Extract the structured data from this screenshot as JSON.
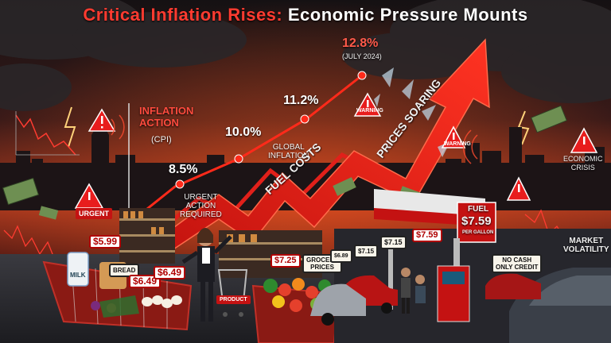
{
  "title": {
    "red_part": "Critical Inflation Rises:",
    "white_part": "Economic Pressure Mounts"
  },
  "chart_labels": {
    "peak_value": "12.8%",
    "peak_date": "(JULY 2024)",
    "value_11": "11.2%",
    "value_10": "10.0%",
    "value_8": "8.5%",
    "inflation_action": "INFLATION\nACTION",
    "cpi": "(CPI)",
    "urgent_action": "URGENT\nACTION\nREQUIRED",
    "global_inflation": "GLOBAL\nINFLATION",
    "fuel_costs": "FUEL COSTS",
    "prices_soaring": "PRICES SOARING"
  },
  "signs": {
    "urgent": "URGENT",
    "warning_1": "WARNING",
    "warning_2": "WARNING",
    "economic_crisis": "ECONOMIC\nCRISIS",
    "market_volatility": "MARKET\nVOLATILITY"
  },
  "price_tags": {
    "p599": "$5.99",
    "bread": "BREAD",
    "p649a": "$6.49",
    "p649b": "$6.49",
    "milk": "MILK",
    "product": "PRODUCT",
    "p725": "$7.25",
    "grocery_prices": "GROCERY\nPRICES",
    "p689": "$6.89",
    "p715a": "$7.15",
    "p715b": "$7.15",
    "p759": "$7.59",
    "fuel": "FUEL",
    "fuel_price": "$7.59",
    "per_gallon": "PER GALLON",
    "no_cash": "NO CASH\nONLY CREDIT"
  },
  "data_points": [
    {
      "label": "8.5%",
      "value": 8.5
    },
    {
      "label": "10.0%",
      "value": 10.0
    },
    {
      "label": "11.2%",
      "value": 11.2
    },
    {
      "label": "12.8%",
      "value": 12.8
    }
  ],
  "colors": {
    "accent": "#ff3b30",
    "arrow": "#e0201a",
    "sky": "#1c1416",
    "fuel": "#c41212"
  }
}
